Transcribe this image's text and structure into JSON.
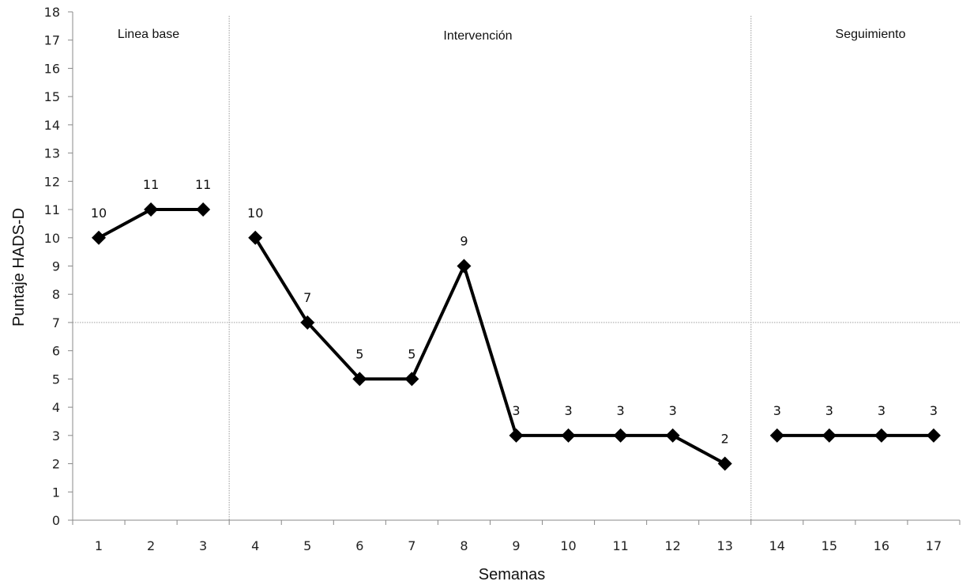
{
  "chart_data": {
    "type": "line",
    "xlabel": "Semanas",
    "ylabel": "Puntaje HADS-D",
    "ylim": [
      0,
      18
    ],
    "yticks": [
      "0",
      "1",
      "2",
      "3",
      "4",
      "5",
      "6",
      "7",
      "8",
      "9",
      "10",
      "11",
      "12",
      "13",
      "14",
      "15",
      "16",
      "17",
      "18"
    ],
    "categories": [
      "1",
      "2",
      "3",
      "4",
      "5",
      "6",
      "7",
      "8",
      "9",
      "10",
      "11",
      "12",
      "13",
      "14",
      "15",
      "16",
      "17"
    ],
    "series": [
      {
        "values": [
          10,
          11,
          11,
          null,
          null,
          null,
          null,
          null,
          null,
          null,
          null,
          null,
          null,
          null,
          null,
          null,
          null
        ]
      },
      {
        "values": [
          null,
          null,
          null,
          10,
          7,
          5,
          5,
          9,
          3,
          3,
          3,
          3,
          2,
          null,
          null,
          null,
          null
        ]
      },
      {
        "values": [
          null,
          null,
          null,
          null,
          null,
          null,
          null,
          null,
          null,
          null,
          null,
          null,
          null,
          3,
          3,
          3,
          3
        ]
      }
    ],
    "data_labels": [
      "10",
      "11",
      "11",
      "10",
      "7",
      "5",
      "5",
      "9",
      "3",
      "3",
      "3",
      "3",
      "2",
      "3",
      "3",
      "3",
      "3"
    ],
    "phases": [
      {
        "label": "Linea base"
      },
      {
        "label": "Intervención"
      },
      {
        "label": "Seguimiento"
      }
    ],
    "reference_line_y": 7,
    "phase_dividers_after_category": [
      "3",
      "13"
    ],
    "grid": false,
    "legend": "none",
    "line_color": "#000000",
    "reference_color": "#aaaaaa"
  }
}
